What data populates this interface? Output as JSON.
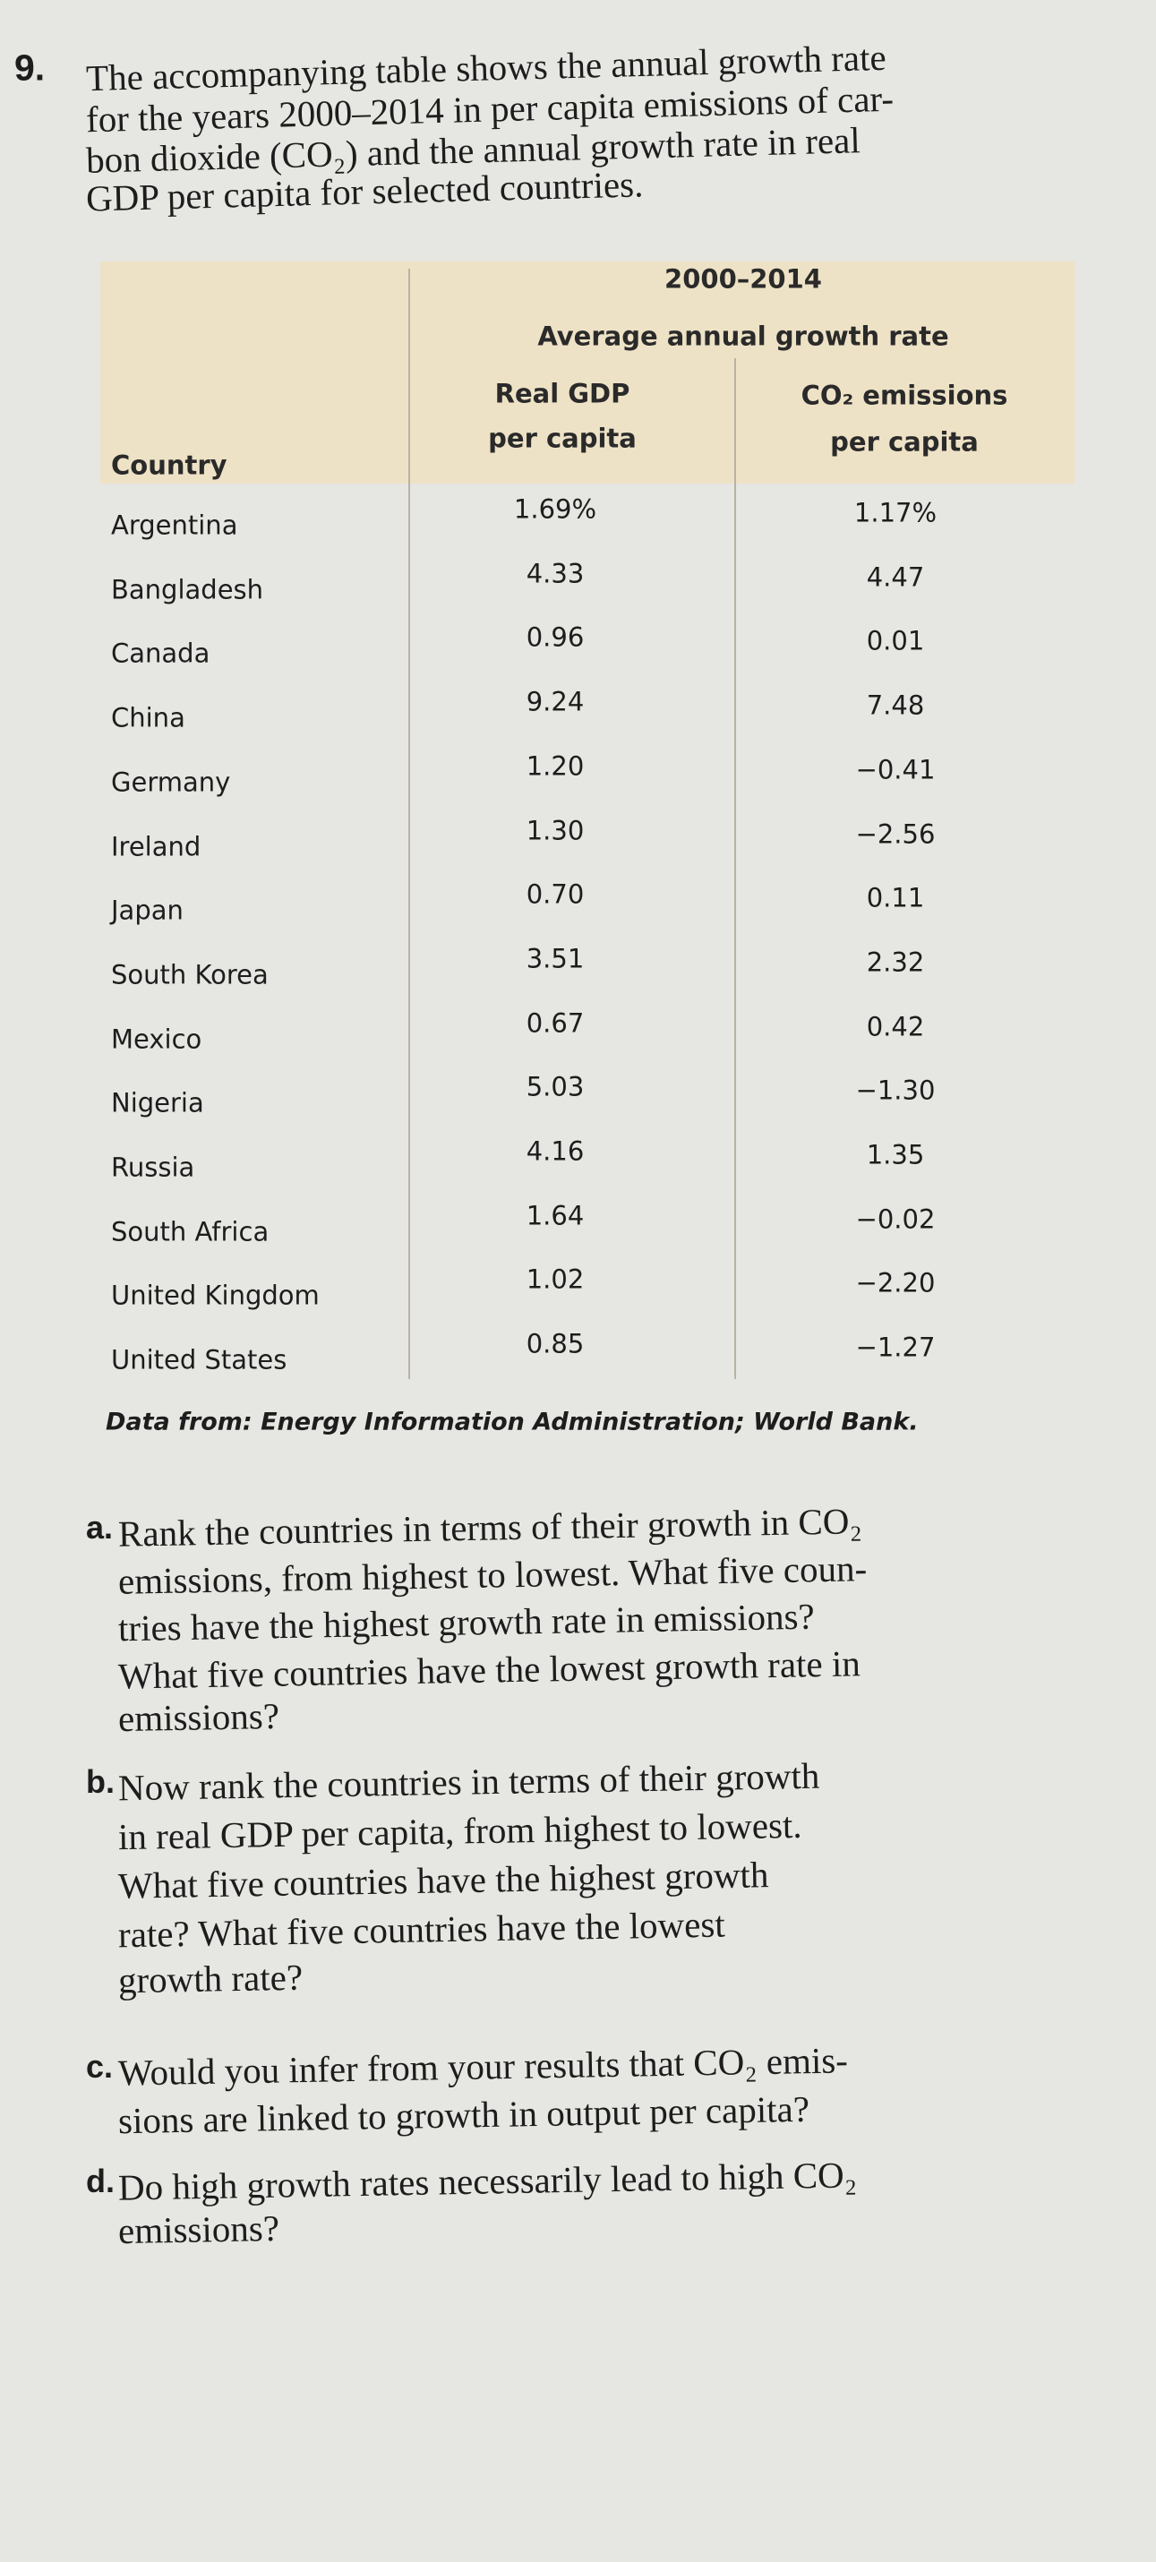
{
  "question": {
    "number": "9.",
    "intro": [
      "The accompanying table shows the annual growth rate",
      "for the years 2000–2014 in per capita emissions of car-",
      "bon dioxide (CO₂) and the annual growth rate in real",
      "GDP per capita for selected countries."
    ]
  },
  "table": {
    "header": {
      "period": "2000–2014",
      "group": "Average annual growth rate",
      "country": "Country",
      "gdp": [
        "Real GDP",
        "per capita"
      ],
      "co2": [
        "CO₂ emissions",
        "per capita"
      ]
    },
    "rows": [
      [
        "Argentina",
        "1.69%",
        "1.17%"
      ],
      [
        "Bangladesh",
        "4.33",
        "4.47"
      ],
      [
        "Canada",
        "0.96",
        "0.01"
      ],
      [
        "China",
        "9.24",
        "7.48"
      ],
      [
        "Germany",
        "1.20",
        "−0.41"
      ],
      [
        "Ireland",
        "1.30",
        "−2.56"
      ],
      [
        "Japan",
        "0.70",
        "0.11"
      ],
      [
        "South Korea",
        "3.51",
        "2.32"
      ],
      [
        "Mexico",
        "0.67",
        "0.42"
      ],
      [
        "Nigeria",
        "5.03",
        "−1.30"
      ],
      [
        "Russia",
        "4.16",
        "1.35"
      ],
      [
        "South Africa",
        "1.64",
        "−0.02"
      ],
      [
        "United Kingdom",
        "1.02",
        "−2.20"
      ],
      [
        "United States",
        "0.85",
        "−1.27"
      ]
    ],
    "source": "Data from: Energy Information Administration; World Bank."
  },
  "parts": [
    {
      "label": "a.",
      "lines": [
        "Rank the countries in terms of their growth in CO₂",
        "emissions, from highest to lowest. What five coun-",
        "tries have the highest growth rate in emissions?",
        "What five countries have the lowest growth rate in",
        "emissions?"
      ]
    },
    {
      "label": "b.",
      "lines": [
        "Now rank the countries in terms of their growth",
        "in real GDP per capita, from highest to lowest.",
        "What five countries have the highest growth",
        "rate? What five countries have the lowest",
        "growth rate?"
      ]
    },
    {
      "label": "c.",
      "lines": [
        "Would you infer from your results that CO₂ emis-",
        "sions are linked to growth in output per capita?"
      ]
    },
    {
      "label": "d.",
      "lines": [
        "Do high growth rates necessarily lead to high CO₂",
        "emissions?"
      ]
    }
  ]
}
